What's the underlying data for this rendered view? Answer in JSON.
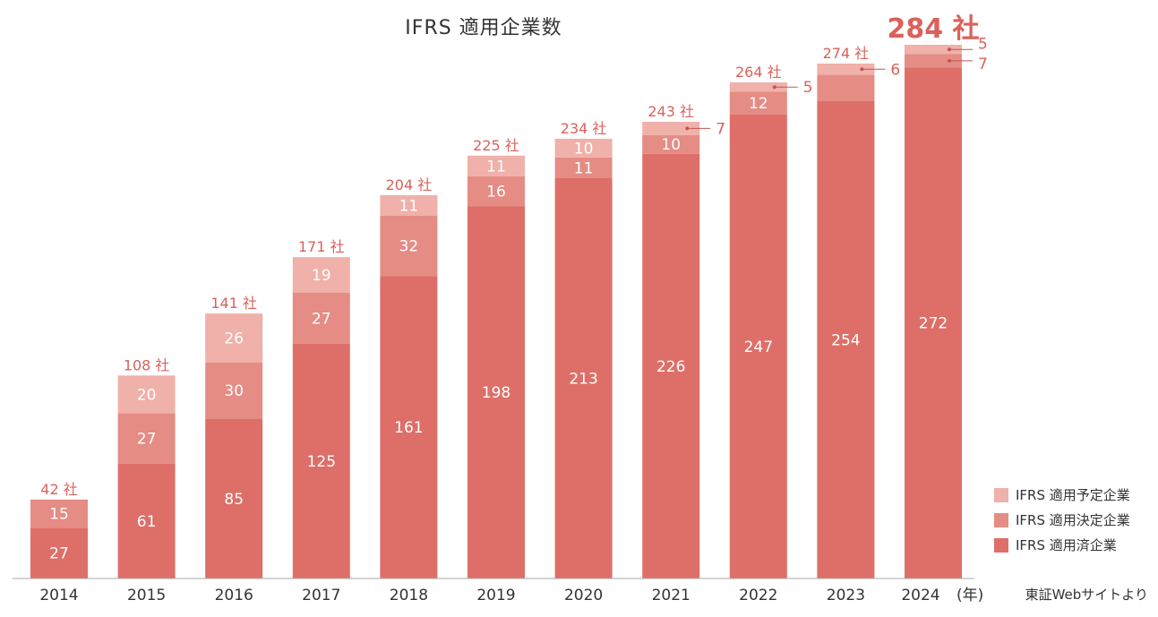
{
  "chart_data": {
    "type": "bar",
    "stacked": true,
    "title": "IFRS 適用企業数",
    "categories": [
      "2014",
      "2015",
      "2016",
      "2017",
      "2018",
      "2019",
      "2020",
      "2021",
      "2022",
      "2023",
      "2024"
    ],
    "x_unit_label": "(年)",
    "series": [
      {
        "name": "IFRS 適用済企業",
        "color": "#dd6f68",
        "values": [
          27,
          61,
          85,
          125,
          161,
          198,
          213,
          226,
          247,
          254,
          272
        ]
      },
      {
        "name": "IFRS 適用決定企業",
        "color": "#e58c84",
        "values": [
          15,
          27,
          30,
          27,
          32,
          16,
          11,
          10,
          12,
          14,
          7
        ]
      },
      {
        "name": "IFRS 適用予定企業",
        "color": "#efb1a9",
        "values": [
          0,
          20,
          26,
          19,
          11,
          11,
          10,
          7,
          5,
          6,
          5
        ]
      }
    ],
    "totals": [
      "42 社",
      "108 社",
      "141 社",
      "171 社",
      "204 社",
      "225 社",
      "234 社",
      "243 社",
      "264 社",
      "274 社",
      "284 社"
    ],
    "segment_labels": [
      [
        "27",
        "61",
        "85",
        "125",
        "161",
        "198",
        "213",
        "226",
        "247",
        "254",
        "272"
      ],
      [
        "15",
        "27",
        "30",
        "27",
        "32",
        "16",
        "11",
        "10",
        "12",
        "",
        ""
      ],
      [
        "",
        "20",
        "26",
        "19",
        "11",
        "11",
        "10",
        "",
        "",
        "",
        ""
      ]
    ],
    "callouts": [
      {
        "category": "2021",
        "series": 2,
        "text": "7"
      },
      {
        "category": "2022",
        "series": 2,
        "text": "5"
      },
      {
        "category": "2023",
        "series": 2,
        "text": "6"
      },
      {
        "category": "2024",
        "series": 2,
        "text": "5"
      },
      {
        "category": "2024",
        "series": 1,
        "text": "7"
      }
    ],
    "legend_order": [
      2,
      1,
      0
    ],
    "legend_position": "bottom-right",
    "grid": false,
    "ylim": [
      0,
      290
    ],
    "source": "東証Webサイトより"
  }
}
